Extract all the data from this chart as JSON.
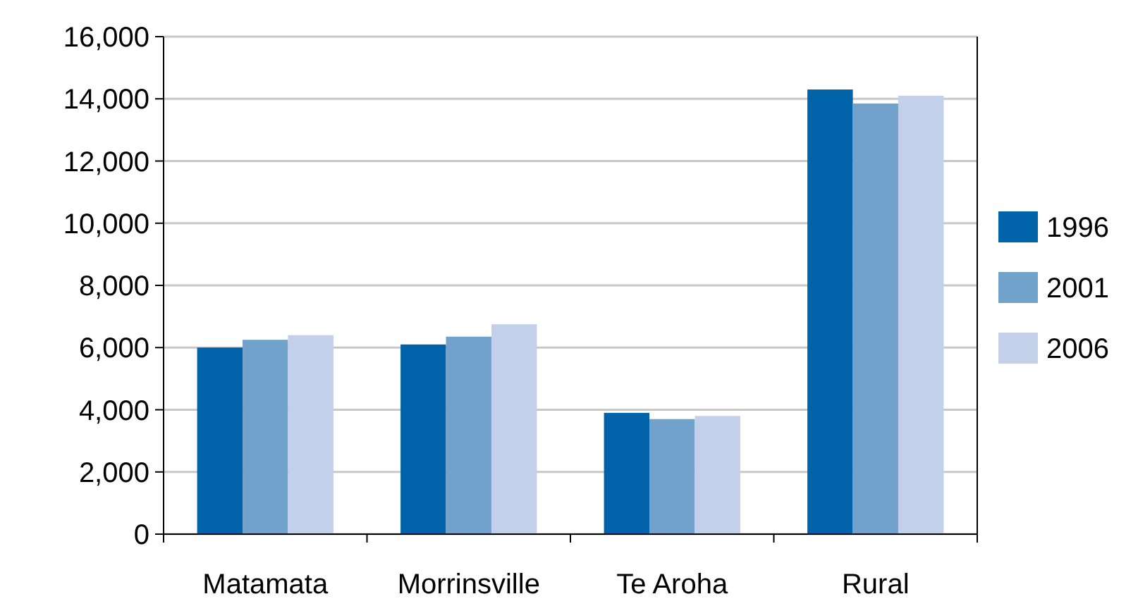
{
  "chart_data": {
    "type": "bar",
    "categories": [
      "Matamata",
      "Morrinsville",
      "Te Aroha",
      "Rural"
    ],
    "series": [
      {
        "name": "1996",
        "color": "#0062a8",
        "values": [
          6000,
          6100,
          3900,
          14300
        ]
      },
      {
        "name": "2001",
        "color": "#70a2cc",
        "values": [
          6250,
          6350,
          3700,
          13850
        ]
      },
      {
        "name": "2006",
        "color": "#c2d0ea",
        "values": [
          6400,
          6750,
          3800,
          14100
        ]
      }
    ],
    "ylim": [
      0,
      16000
    ],
    "yticks": [
      {
        "value": 0,
        "label": "0"
      },
      {
        "value": 2000,
        "label": "2,000"
      },
      {
        "value": 4000,
        "label": "4,000"
      },
      {
        "value": 6000,
        "label": "6,000"
      },
      {
        "value": 8000,
        "label": "8,000"
      },
      {
        "value": 10000,
        "label": "10,000"
      },
      {
        "value": 12000,
        "label": "12,000"
      },
      {
        "value": 14000,
        "label": "14,000"
      },
      {
        "value": 16000,
        "label": "16,000"
      }
    ],
    "grid": "y",
    "legend": "right"
  }
}
